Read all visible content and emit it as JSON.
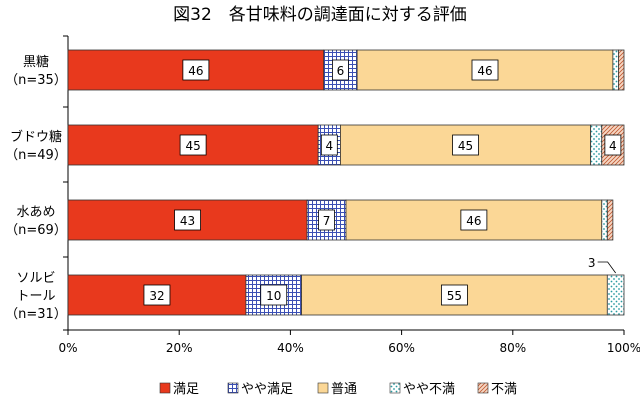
{
  "colors": {
    "manzoku": "#e8391d",
    "yaya_manzoku": "#c9d3f0",
    "futsu": "#fbd796",
    "yaya_fuman": "#d8f2f2",
    "fuman": "#f3cdb6"
  },
  "chart_data": {
    "type": "bar",
    "orientation": "horizontal",
    "stacked": "percent",
    "title": "図32　各甘味料の調達面に対する評価",
    "categories": [
      [
        "黒糖",
        "（n=35）"
      ],
      [
        "ブドウ糖",
        "（n=49）"
      ],
      [
        "水あめ",
        "（n=69）"
      ],
      [
        "ソルビ",
        "トール",
        "（n=31）"
      ]
    ],
    "series": [
      {
        "name": "満足",
        "values": [
          46,
          45,
          43,
          32
        ]
      },
      {
        "name": "やや満足",
        "values": [
          6,
          4,
          7,
          10
        ]
      },
      {
        "name": "普通",
        "values": [
          46,
          45,
          46,
          55
        ]
      },
      {
        "name": "やや不満",
        "values": [
          1,
          2,
          1,
          3
        ]
      },
      {
        "name": "不満",
        "values": [
          1,
          4,
          1,
          0
        ]
      }
    ],
    "data_labels": [
      [
        "46",
        "6",
        "46",
        "",
        ""
      ],
      [
        "45",
        "4",
        "45",
        "",
        "4"
      ],
      [
        "43",
        "7",
        "46",
        "",
        ""
      ],
      [
        "32",
        "10",
        "55",
        "3",
        ""
      ]
    ],
    "x_ticks": [
      "0%",
      "20%",
      "40%",
      "60%",
      "80%",
      "100%"
    ],
    "xlim": [
      0,
      100
    ],
    "legend_position": "bottom",
    "grid": false
  }
}
